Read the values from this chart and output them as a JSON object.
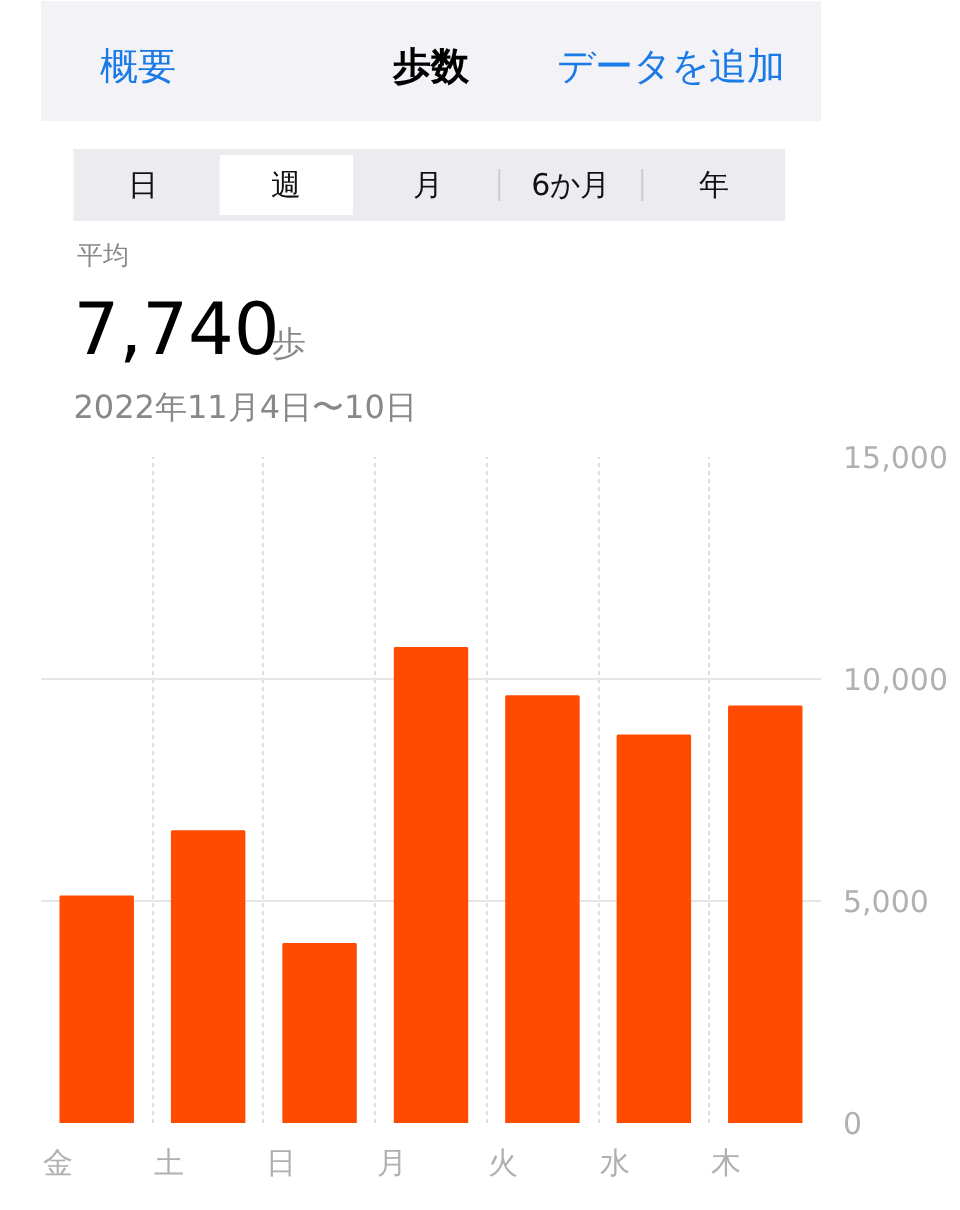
{
  "chart_data": {
    "type": "bar",
    "title": "歩数",
    "subtitle": "2022年11月4日〜10日",
    "annotations": [
      "概要",
      "データを追加",
      "日",
      "週",
      "月",
      "6か月",
      "年",
      "平均",
      "7,740",
      "歩"
    ],
    "categories": [
      "金",
      "土",
      "日",
      "月",
      "火",
      "水",
      "木"
    ],
    "values": [
      5100,
      6570,
      4030,
      10700,
      9610,
      8730,
      9380
    ],
    "color": "#ff4b00",
    "ylim": [
      0,
      15000
    ],
    "yticks": [
      0,
      {
        "value": 5000,
        "label": "5,000"
      },
      {
        "value": 10000,
        "label": "10,000"
      },
      {
        "value": 15000,
        "label": "15,000"
      }
    ],
    "grid": true
  }
}
